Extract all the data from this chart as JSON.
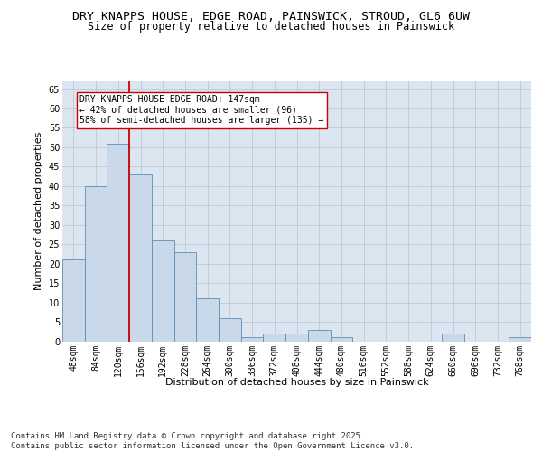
{
  "title_line1": "DRY KNAPPS HOUSE, EDGE ROAD, PAINSWICK, STROUD, GL6 6UW",
  "title_line2": "Size of property relative to detached houses in Painswick",
  "xlabel": "Distribution of detached houses by size in Painswick",
  "ylabel": "Number of detached properties",
  "categories": [
    "48sqm",
    "84sqm",
    "120sqm",
    "156sqm",
    "192sqm",
    "228sqm",
    "264sqm",
    "300sqm",
    "336sqm",
    "372sqm",
    "408sqm",
    "444sqm",
    "480sqm",
    "516sqm",
    "552sqm",
    "588sqm",
    "624sqm",
    "660sqm",
    "696sqm",
    "732sqm",
    "768sqm"
  ],
  "values": [
    21,
    40,
    51,
    43,
    26,
    23,
    11,
    6,
    1,
    2,
    2,
    3,
    1,
    0,
    0,
    0,
    0,
    2,
    0,
    0,
    1
  ],
  "bar_color": "#c9d9ea",
  "bar_edge_color": "#5b8db8",
  "grid_color": "#c0c8d8",
  "background_color": "#dce6f0",
  "vline_color": "#cc0000",
  "annotation_text": "DRY KNAPPS HOUSE EDGE ROAD: 147sqm\n← 42% of detached houses are smaller (96)\n58% of semi-detached houses are larger (135) →",
  "annotation_box_color": "#ffffff",
  "annotation_box_edge": "#cc0000",
  "ylim": [
    0,
    67
  ],
  "yticks": [
    0,
    5,
    10,
    15,
    20,
    25,
    30,
    35,
    40,
    45,
    50,
    55,
    60,
    65
  ],
  "footnote": "Contains HM Land Registry data © Crown copyright and database right 2025.\nContains public sector information licensed under the Open Government Licence v3.0.",
  "title_fontsize": 9.5,
  "subtitle_fontsize": 8.5,
  "axis_label_fontsize": 8,
  "tick_fontsize": 7,
  "annotation_fontsize": 7,
  "footnote_fontsize": 6.5
}
